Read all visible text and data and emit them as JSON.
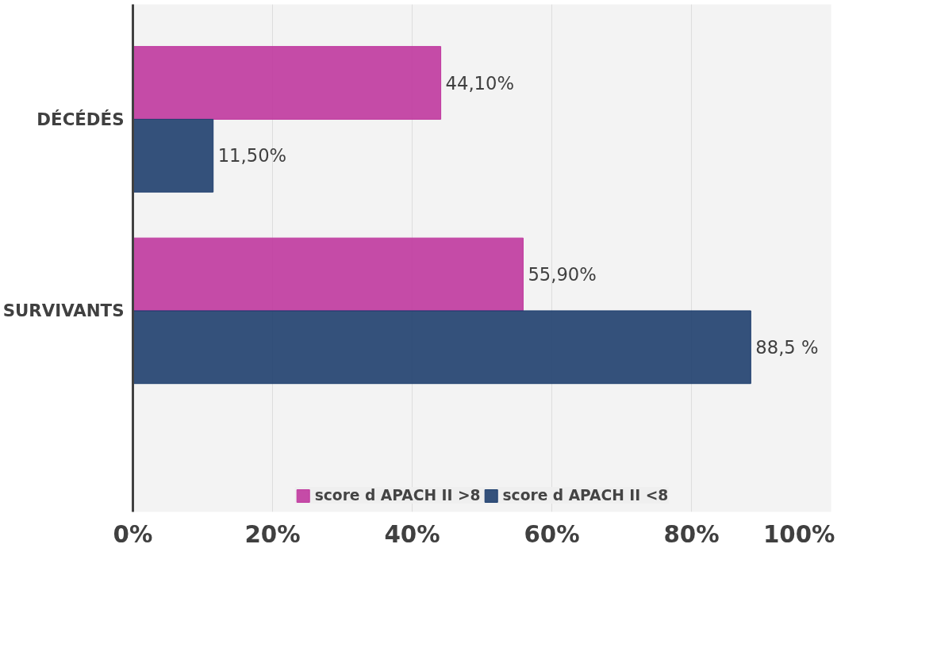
{
  "chart_data": {
    "type": "bar",
    "orientation": "horizontal",
    "categories": [
      "DÉCÉDÉS",
      "SURVIVANTS"
    ],
    "series": [
      {
        "name": "score d APACH II >8",
        "color": "#c0399f",
        "values": [
          44.1,
          55.9
        ],
        "value_labels": [
          "44,10%",
          "55,90%"
        ]
      },
      {
        "name": "score d APACH II <8",
        "color": "#1f3f6e",
        "values": [
          11.5,
          88.5
        ],
        "value_labels": [
          "11,50%",
          "88,5 %"
        ]
      }
    ],
    "xlim": [
      0,
      100
    ],
    "xticks": [
      {
        "value": 0,
        "label": "0%"
      },
      {
        "value": 20,
        "label": "20%"
      },
      {
        "value": 40,
        "label": "40%"
      },
      {
        "value": 60,
        "label": "60%"
      },
      {
        "value": 80,
        "label": "80%"
      },
      {
        "value": 100,
        "label": "100%"
      }
    ],
    "grid": "x",
    "legend": "bottom"
  }
}
